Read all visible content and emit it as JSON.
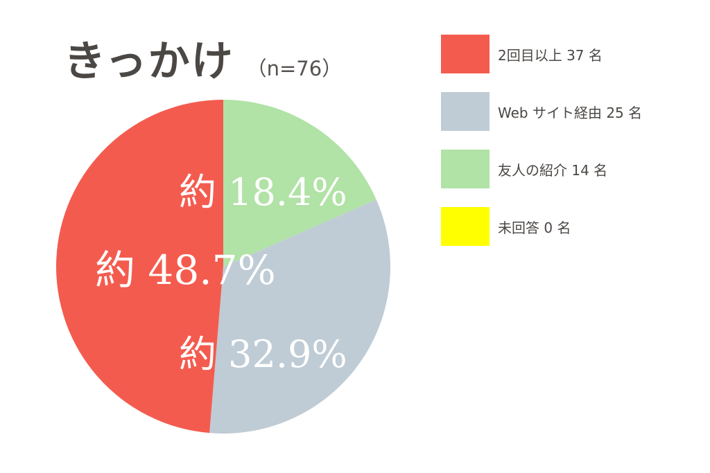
{
  "title": {
    "main": "きっかけ",
    "sample": "（n=76）"
  },
  "chart_data": {
    "type": "pie",
    "title": "きっかけ",
    "subtitle": "（n=76）",
    "start": "12 o'clock",
    "direction": "clockwise",
    "slices": [
      {
        "name": "友人の紹介",
        "value": 14,
        "legend": "友人の紹介 14 名",
        "label": "約 18.4%",
        "color": "#b1e2a6"
      },
      {
        "name": "Webサイト経由",
        "value": 25,
        "legend": "Web サイト経由 25 名",
        "label": "約 32.9%",
        "color": "#bfccd5"
      },
      {
        "name": "2回目以上",
        "value": 37,
        "legend": "2回目以上 37 名",
        "label": "約 48.7%",
        "color": "#f45b4f"
      },
      {
        "name": "未回答",
        "value": 0,
        "legend": "未回答 0 名",
        "label": "",
        "color": "#ffff00"
      }
    ],
    "legend_order": [
      "2回目以上",
      "Webサイト経由",
      "友人の紹介",
      "未回答"
    ],
    "legend_position": "right"
  }
}
